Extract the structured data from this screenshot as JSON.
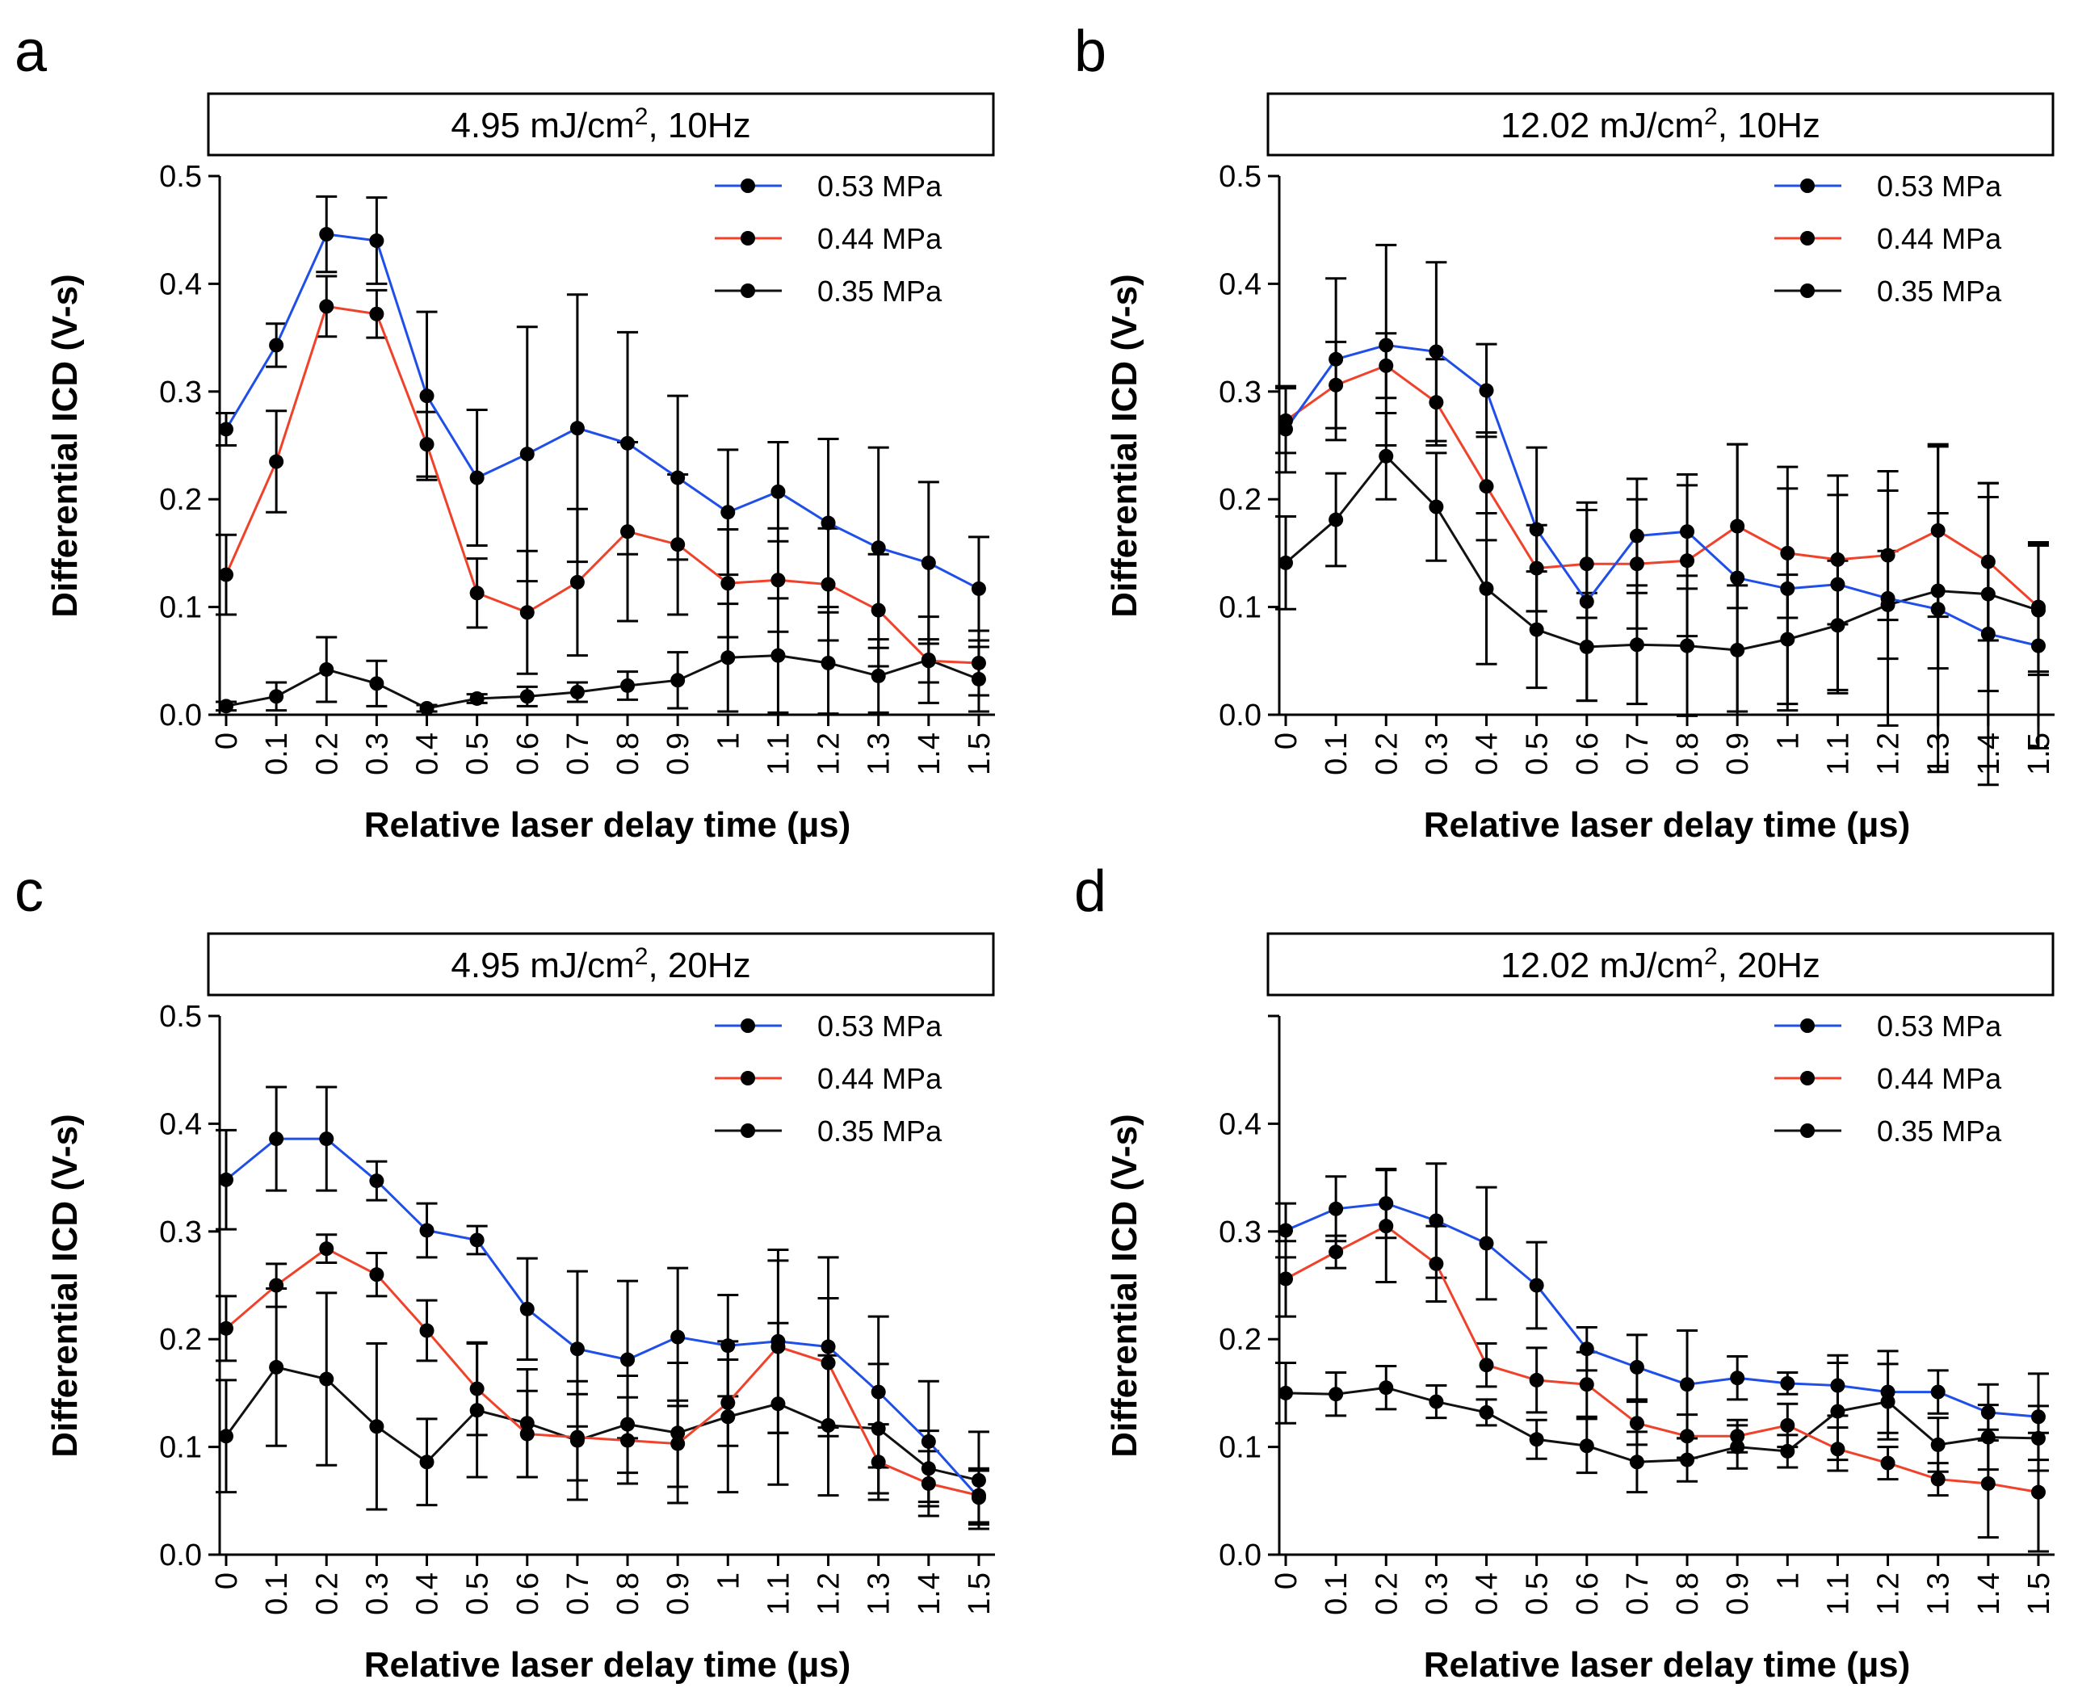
{
  "colors": {
    "blue": "#1f4fe8",
    "red": "#f0422b",
    "black": "#111111"
  },
  "chart_data": [
    {
      "type": "line",
      "panel_letter": "a",
      "title": {
        "pre": "4.95 mJ/cm",
        "sup": "2",
        "post": ", 10Hz"
      },
      "xlabel": "Relative laser delay time (µs)",
      "ylabel": "Differential ICD (V-s)",
      "ylim": [
        0,
        0.5
      ],
      "yticks": [
        "0.0",
        "0.1",
        "0.2",
        "0.3",
        "0.4",
        "0.5"
      ],
      "x": [
        "0",
        "0.1",
        "0.2",
        "0.3",
        "0.4",
        "0.5",
        "0.6",
        "0.7",
        "0.8",
        "0.9",
        "1",
        "1.1",
        "1.2",
        "1.3",
        "1.4",
        "1.5"
      ],
      "legend": [
        "0.53 MPa",
        "0.44 MPa",
        "0.35 MPa"
      ],
      "series": [
        {
          "name": "0.53 MPa",
          "color": "blue",
          "values": [
            0.265,
            0.343,
            0.446,
            0.44,
            0.296,
            0.22,
            0.242,
            0.266,
            0.252,
            0.22,
            0.188,
            0.207,
            0.178,
            0.155,
            0.141,
            0.117
          ],
          "errors": [
            0.015,
            0.02,
            0.035,
            0.04,
            0.078,
            0.063,
            0.118,
            0.124,
            0.103,
            0.076,
            0.058,
            0.046,
            0.078,
            0.093,
            0.075,
            0.048
          ]
        },
        {
          "name": "0.44 MPa",
          "color": "red",
          "values": [
            0.13,
            0.235,
            0.379,
            0.372,
            0.251,
            0.113,
            0.095,
            0.123,
            0.17,
            0.158,
            0.122,
            0.125,
            0.121,
            0.097,
            0.05,
            0.048
          ],
          "errors": [
            0.037,
            0.047,
            0.028,
            0.022,
            0.03,
            0.032,
            0.057,
            0.068,
            0.083,
            0.065,
            0.05,
            0.048,
            0.052,
            0.052,
            0.02,
            0.03
          ]
        },
        {
          "name": "0.35 MPa",
          "color": "black",
          "values": [
            0.008,
            0.017,
            0.042,
            0.029,
            0.006,
            0.015,
            0.017,
            0.021,
            0.027,
            0.032,
            0.053,
            0.055,
            0.048,
            0.036,
            0.051,
            0.033
          ],
          "errors": [
            0.004,
            0.013,
            0.03,
            0.021,
            0.003,
            0.004,
            0.009,
            0.009,
            0.013,
            0.026,
            0.05,
            0.053,
            0.047,
            0.034,
            0.04,
            0.03
          ]
        }
      ]
    },
    {
      "type": "line",
      "panel_letter": "b",
      "title": {
        "pre": "12.02 mJ/cm",
        "sup": "2",
        "post": ", 10Hz"
      },
      "xlabel": "Relative laser delay time (µs)",
      "ylabel": "Differential ICD (V-s)",
      "ylim": [
        0,
        0.5
      ],
      "yticks": [
        "0.0",
        "0.1",
        "0.2",
        "0.3",
        "0.4",
        "0.5"
      ],
      "x": [
        "0",
        "0.1",
        "0.2",
        "0.3",
        "0.4",
        "0.5",
        "0.6",
        "0.7",
        "0.8",
        "0.9",
        "1",
        "1.1",
        "1.2",
        "1.3",
        "1.4",
        "1.5"
      ],
      "legend": [
        "0.53 MPa",
        "0.44 MPa",
        "0.35 MPa"
      ],
      "series": [
        {
          "name": "0.53 MPa",
          "color": "blue",
          "values": [
            0.265,
            0.33,
            0.343,
            0.337,
            0.301,
            0.172,
            0.105,
            0.166,
            0.17,
            0.127,
            0.117,
            0.121,
            0.108,
            0.098,
            0.075,
            0.064
          ],
          "errors": [
            0.04,
            0.075,
            0.093,
            0.083,
            0.043,
            0.076,
            0.092,
            0.053,
            0.053,
            0.124,
            0.113,
            0.101,
            0.118,
            0.151,
            0.14,
            0.095
          ]
        },
        {
          "name": "0.44 MPa",
          "color": "red",
          "values": [
            0.273,
            0.306,
            0.324,
            0.29,
            0.212,
            0.136,
            0.14,
            0.14,
            0.143,
            0.175,
            0.15,
            0.144,
            0.148,
            0.171,
            0.142,
            0.1
          ],
          "errors": [
            0.03,
            0.04,
            0.03,
            0.04,
            0.05,
            0.04,
            0.05,
            0.06,
            0.07,
            0.076,
            0.06,
            0.06,
            0.06,
            0.08,
            0.073,
            0.06
          ]
        },
        {
          "name": "0.35 MPa",
          "color": "black",
          "values": [
            0.141,
            0.181,
            0.24,
            0.193,
            0.117,
            0.079,
            0.063,
            0.065,
            0.064,
            0.06,
            0.07,
            0.083,
            0.102,
            0.115,
            0.112,
            0.097
          ],
          "errors": [
            0.043,
            0.043,
            0.04,
            0.05,
            0.07,
            0.054,
            0.05,
            0.055,
            0.065,
            0.06,
            0.06,
            0.06,
            0.05,
            0.072,
            0.09,
            0.06
          ]
        }
      ]
    },
    {
      "type": "line",
      "panel_letter": "c",
      "title": {
        "pre": "4.95 mJ/cm",
        "sup": "2",
        "post": ", 20Hz"
      },
      "xlabel": "Relative laser delay time (µs)",
      "ylabel": "Differential ICD (V-s)",
      "ylim": [
        0,
        0.5
      ],
      "yticks": [
        "0.0",
        "0.1",
        "0.2",
        "0.3",
        "0.4",
        "0.5"
      ],
      "x": [
        "0",
        "0.1",
        "0.2",
        "0.3",
        "0.4",
        "0.5",
        "0.6",
        "0.7",
        "0.8",
        "0.9",
        "1",
        "1.1",
        "1.2",
        "1.3",
        "1.4",
        "1.5"
      ],
      "legend": [
        "0.53 MPa",
        "0.44 MPa",
        "0.35 MPa"
      ],
      "series": [
        {
          "name": "0.53 MPa",
          "color": "blue",
          "values": [
            0.348,
            0.386,
            0.386,
            0.347,
            0.301,
            0.292,
            0.228,
            0.191,
            0.181,
            0.202,
            0.194,
            0.198,
            0.193,
            0.151,
            0.105,
            0.053
          ],
          "errors": [
            0.046,
            0.048,
            0.048,
            0.018,
            0.025,
            0.013,
            0.047,
            0.072,
            0.073,
            0.064,
            0.047,
            0.085,
            0.083,
            0.07,
            0.056,
            0.025
          ]
        },
        {
          "name": "0.44 MPa",
          "color": "red",
          "values": [
            0.21,
            0.25,
            0.284,
            0.26,
            0.208,
            0.154,
            0.112,
            0.109,
            0.106,
            0.103,
            0.141,
            0.193,
            0.178,
            0.086,
            0.066,
            0.055
          ],
          "errors": [
            0.03,
            0.02,
            0.013,
            0.02,
            0.028,
            0.043,
            0.04,
            0.04,
            0.04,
            0.04,
            0.04,
            0.08,
            0.06,
            0.035,
            0.03,
            0.025
          ]
        },
        {
          "name": "0.35 MPa",
          "color": "black",
          "values": [
            0.11,
            0.174,
            0.163,
            0.119,
            0.086,
            0.134,
            0.122,
            0.106,
            0.121,
            0.113,
            0.128,
            0.14,
            0.12,
            0.117,
            0.08,
            0.069
          ],
          "errors": [
            0.052,
            0.073,
            0.08,
            0.077,
            0.04,
            0.062,
            0.05,
            0.055,
            0.045,
            0.065,
            0.07,
            0.075,
            0.065,
            0.06,
            0.035,
            0.045
          ]
        }
      ]
    },
    {
      "type": "line",
      "panel_letter": "d",
      "title": {
        "pre": "12.02 mJ/cm",
        "sup": "2",
        "post": ", 20Hz"
      },
      "xlabel": "Relative laser delay time (µs)",
      "ylabel": "Differential ICD (V-s)",
      "ylim": [
        0,
        0.5
      ],
      "yticks": [
        "0.0",
        "0.1",
        "0.2",
        "0.3",
        "0.4",
        ""
      ],
      "x": [
        "0",
        "0.1",
        "0.2",
        "0.3",
        "0.4",
        "0.5",
        "0.6",
        "0.7",
        "0.8",
        "0.9",
        "1",
        "1.1",
        "1.2",
        "1.3",
        "1.4",
        "1.5"
      ],
      "legend": [
        "0.53 MPa",
        "0.44 MPa",
        "0.35 MPa"
      ],
      "series": [
        {
          "name": "0.53 MPa",
          "color": "blue",
          "values": [
            0.301,
            0.321,
            0.326,
            0.31,
            0.289,
            0.25,
            0.191,
            0.174,
            0.158,
            0.164,
            0.159,
            0.157,
            0.151,
            0.151,
            0.132,
            0.128
          ],
          "errors": [
            0.025,
            0.03,
            0.032,
            0.053,
            0.052,
            0.04,
            0.02,
            0.03,
            0.05,
            0.02,
            0.01,
            0.028,
            0.038,
            0.02,
            0.026,
            0.04
          ]
        },
        {
          "name": "0.44 MPa",
          "color": "red",
          "values": [
            0.256,
            0.281,
            0.305,
            0.27,
            0.176,
            0.162,
            0.158,
            0.122,
            0.11,
            0.11,
            0.12,
            0.098,
            0.085,
            0.07,
            0.066,
            0.058
          ],
          "errors": [
            0.035,
            0.015,
            0.052,
            0.035,
            0.02,
            0.03,
            0.03,
            0.02,
            0.02,
            0.015,
            0.02,
            0.02,
            0.015,
            0.015,
            0.05,
            0.055
          ]
        },
        {
          "name": "0.35 MPa",
          "color": "black",
          "values": [
            0.15,
            0.149,
            0.155,
            0.142,
            0.132,
            0.107,
            0.101,
            0.086,
            0.088,
            0.1,
            0.096,
            0.133,
            0.142,
            0.102,
            0.109,
            0.108
          ],
          "errors": [
            0.028,
            0.02,
            0.02,
            0.015,
            0.012,
            0.018,
            0.025,
            0.028,
            0.02,
            0.02,
            0.015,
            0.045,
            0.035,
            0.025,
            0.03,
            0.03
          ]
        }
      ]
    }
  ]
}
